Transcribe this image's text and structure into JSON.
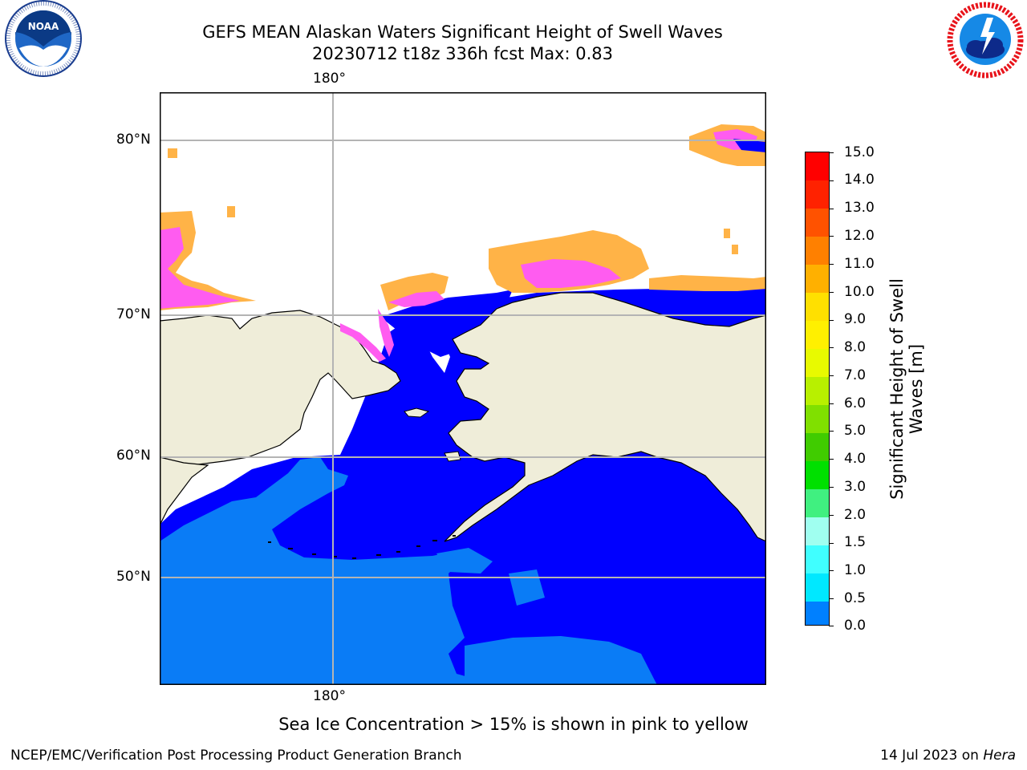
{
  "title": {
    "line1": "GEFS MEAN Alaskan Waters Significant Height of Swell Waves",
    "line2": "20230712 t18z 336h fcst   Max: 0.83"
  },
  "logos": {
    "noaa_text": "NOAA",
    "noaa_ring": "NATIONAL OCEANIC AND ATMOSPHERIC ADMINISTRATION · U.S. DEPARTMENT OF COMMERCE",
    "nws_ring": "NATIONAL WEATHER SERVICE"
  },
  "map": {
    "lon_top_label": "180°",
    "lon_bottom_label": "180°",
    "lat_labels": [
      "80°N",
      "70°N",
      "60°N",
      "50°N"
    ],
    "colors": {
      "land": "#efedd9",
      "ocean_low": "#0000ff",
      "ocean_mid": "#0a7cf6",
      "ice_pink": "#ff5cf0",
      "ice_orange": "#ffb347",
      "ice_yellow": "#ffe14d",
      "grid": "#b4b4b4"
    }
  },
  "colorbar": {
    "label": "Significant Height of Swell Waves [m]",
    "ticks": [
      "15.0",
      "14.0",
      "13.0",
      "12.0",
      "11.0",
      "10.0",
      "9.0",
      "8.0",
      "7.0",
      "6.0",
      "5.0",
      "4.0",
      "3.0",
      "2.0",
      "1.5",
      "1.0",
      "0.5",
      "0.0"
    ],
    "colors": [
      "#ff0000",
      "#ff2200",
      "#ff5200",
      "#ff8000",
      "#ffb000",
      "#ffe000",
      "#fff000",
      "#e8fa00",
      "#b8f000",
      "#80e000",
      "#40cc00",
      "#00e000",
      "#40f080",
      "#a0fff0",
      "#40ffff",
      "#00e8ff",
      "#0080ff",
      "#0000ff"
    ]
  },
  "footer": {
    "note": "Sea Ice Concentration > 15% is shown in pink to yellow",
    "credit": "NCEP/EMC/Verification Post Processing Product Generation Branch",
    "date_prefix": "14 Jul 2023 on",
    "date_machine": "Hera"
  }
}
